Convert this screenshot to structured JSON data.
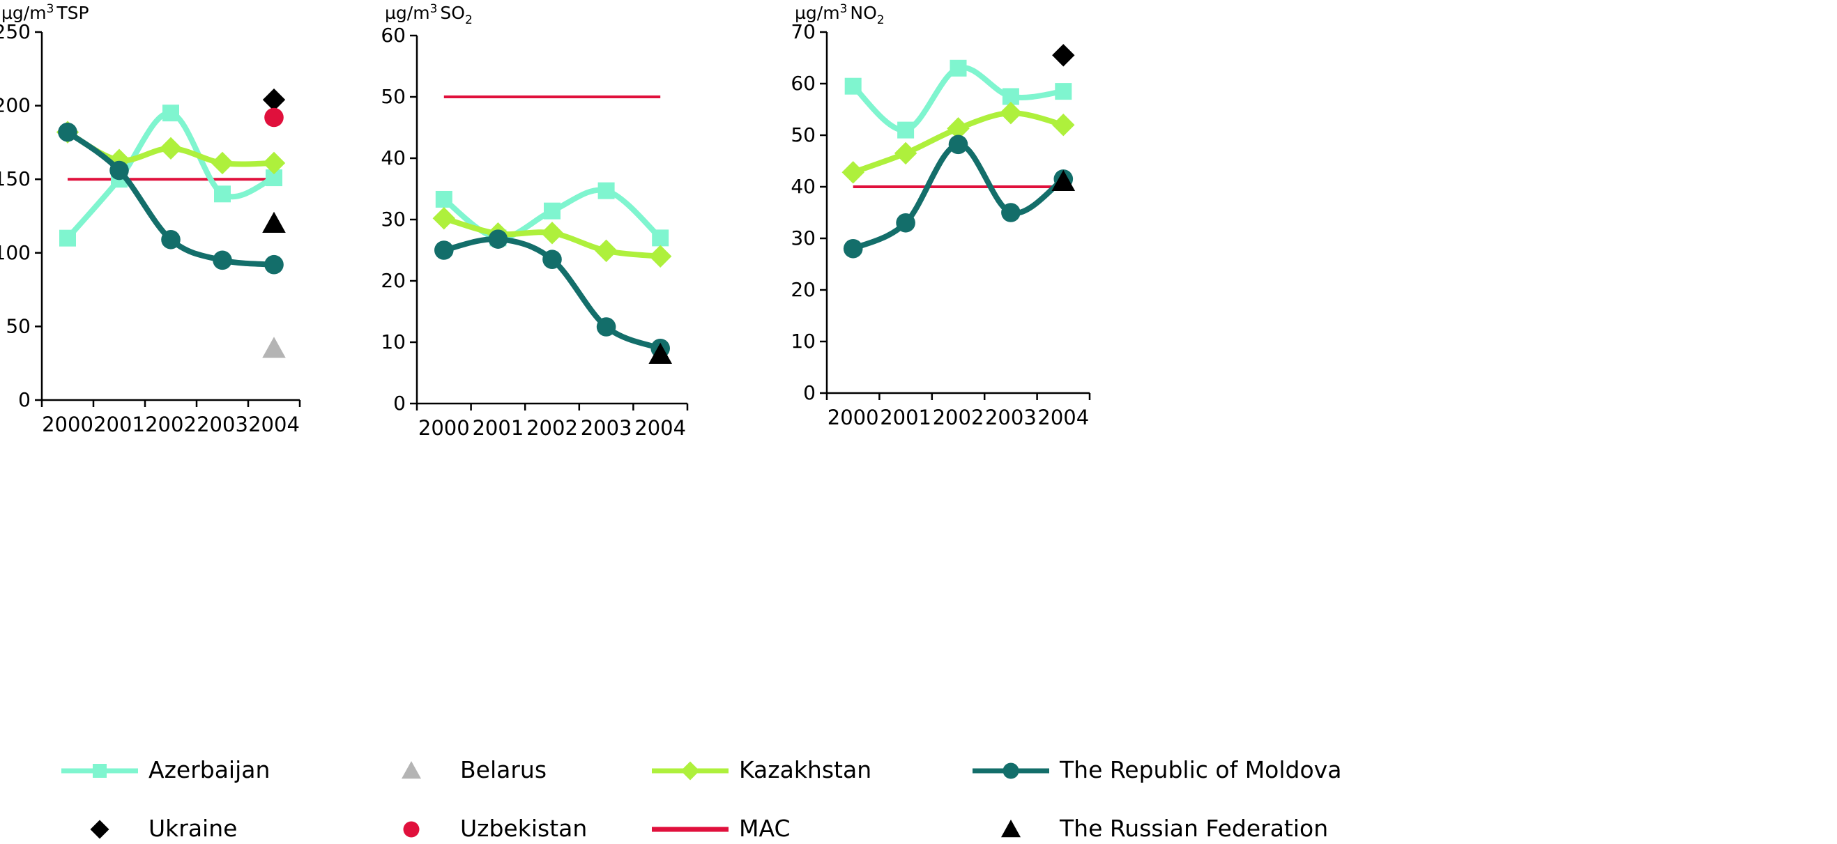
{
  "chart_data": [
    {
      "type": "line",
      "ylabel": "µg/m³ TSP",
      "ylabel_parts": {
        "unit": "µg/m",
        "sup": "3",
        "pollutant": "TSP",
        "sub": ""
      },
      "categories": [
        "2000",
        "2001",
        "2002",
        "2003",
        "2004"
      ],
      "ylim": [
        0,
        250
      ],
      "yticks": [
        "0",
        "50",
        "100",
        "150",
        "200",
        "250"
      ],
      "series": [
        {
          "name": "Azerbaijan",
          "key": "azerbaijan",
          "values": [
            110,
            150,
            195,
            140,
            151
          ]
        },
        {
          "name": "Kazakhstan",
          "key": "kazakhstan",
          "values": [
            182,
            163,
            171,
            161,
            161
          ]
        },
        {
          "name": "The Republic of Moldova",
          "key": "moldova",
          "values": [
            182,
            156,
            109,
            95,
            92
          ]
        }
      ],
      "mac": 150,
      "points_2004": [
        {
          "name": "Ukraine",
          "key": "ukraine",
          "value": 204
        },
        {
          "name": "Uzbekistan",
          "key": "uzbekistan",
          "value": 192
        },
        {
          "name": "The Russian Federation",
          "key": "russia",
          "value": 120
        },
        {
          "name": "Belarus",
          "key": "belarus",
          "value": 35
        }
      ]
    },
    {
      "type": "line",
      "ylabel": "µg/m³ SO₂",
      "ylabel_parts": {
        "unit": "µg/m",
        "sup": "3",
        "pollutant": "SO",
        "sub": "2"
      },
      "categories": [
        "2000",
        "2001",
        "2002",
        "2003",
        "2004"
      ],
      "ylim": [
        0,
        60
      ],
      "yticks": [
        "0",
        "10",
        "20",
        "30",
        "40",
        "50",
        "60"
      ],
      "series": [
        {
          "name": "Azerbaijan",
          "key": "azerbaijan",
          "values": [
            33.3,
            27,
            31.4,
            34.7,
            27
          ]
        },
        {
          "name": "Kazakhstan",
          "key": "kazakhstan",
          "values": [
            30.2,
            27.7,
            27.8,
            24.9,
            24
          ]
        },
        {
          "name": "The Republic of Moldova",
          "key": "moldova",
          "values": [
            25,
            26.8,
            23.5,
            12.5,
            9
          ]
        }
      ],
      "mac": 50,
      "points_2004": [
        {
          "name": "The Russian Federation",
          "key": "russia",
          "value": 8
        }
      ]
    },
    {
      "type": "line",
      "ylabel": "µg/m³ NO₂",
      "ylabel_parts": {
        "unit": "µg/m",
        "sup": "3",
        "pollutant": "NO",
        "sub": "2"
      },
      "categories": [
        "2000",
        "2001",
        "2002",
        "2003",
        "2004"
      ],
      "ylim": [
        0,
        70
      ],
      "yticks": [
        "0",
        "10",
        "20",
        "30",
        "40",
        "50",
        "60",
        "70"
      ],
      "series": [
        {
          "name": "Azerbaijan",
          "key": "azerbaijan",
          "values": [
            59.5,
            51,
            63,
            57.5,
            58.5
          ]
        },
        {
          "name": "Kazakhstan",
          "key": "kazakhstan",
          "values": [
            42.8,
            46.5,
            51.3,
            54.3,
            52
          ]
        },
        {
          "name": "The Republic of Moldova",
          "key": "moldova",
          "values": [
            28,
            33,
            48.2,
            35,
            41.5
          ]
        }
      ],
      "mac": 40,
      "points_2004": [
        {
          "name": "Ukraine",
          "key": "ukraine",
          "value": 65.5
        },
        {
          "name": "The Russian Federation",
          "key": "russia",
          "value": 41
        }
      ]
    }
  ],
  "legend": {
    "items": [
      {
        "key": "azerbaijan",
        "label": "Azerbaijan"
      },
      {
        "key": "belarus",
        "label": "Belarus"
      },
      {
        "key": "kazakhstan",
        "label": "Kazakhstan"
      },
      {
        "key": "moldova",
        "label": "The Republic of Moldova"
      },
      {
        "key": "ukraine",
        "label": "Ukraine"
      },
      {
        "key": "uzbekistan",
        "label": "Uzbekistan"
      },
      {
        "key": "mac",
        "label": "MAC"
      },
      {
        "key": "russia",
        "label": "The Russian Federation"
      }
    ]
  },
  "styles": {
    "azerbaijan": {
      "color": "#7ff5cf",
      "marker": "square",
      "kind": "line"
    },
    "kazakhstan": {
      "color": "#aef03c",
      "marker": "diamond",
      "kind": "line"
    },
    "moldova": {
      "color": "#136e6a",
      "marker": "circle",
      "kind": "line"
    },
    "belarus": {
      "color": "#b4b4b4",
      "marker": "triangle",
      "kind": "point"
    },
    "ukraine": {
      "color": "#000000",
      "marker": "diamond",
      "kind": "point"
    },
    "uzbekistan": {
      "color": "#e0103c",
      "marker": "circle",
      "kind": "point"
    },
    "russia": {
      "color": "#000000",
      "marker": "triangle",
      "kind": "point"
    },
    "mac": {
      "color": "#e0103c",
      "marker": "none",
      "kind": "line"
    }
  }
}
